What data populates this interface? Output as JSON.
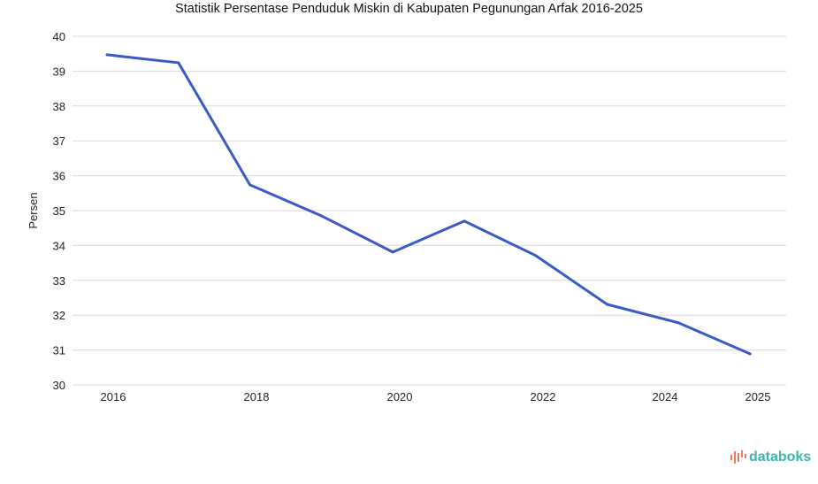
{
  "chart_data": {
    "type": "line",
    "title": "Statistik Persentase Penduduk Miskin di Kabupaten Pegunungan Arfak 2016-2025",
    "xlabel": "",
    "ylabel": "Persen",
    "ylim": [
      30,
      40
    ],
    "yticks": [
      "30",
      "31",
      "32",
      "33",
      "34",
      "35",
      "36",
      "37",
      "38",
      "39",
      "40"
    ],
    "xtick_labels": [
      "2016",
      "2018",
      "2020",
      "2022",
      "2024",
      "2025"
    ],
    "x": [
      2016,
      2017,
      2018,
      2019,
      2020,
      2021,
      2022,
      2023,
      2024,
      2025
    ],
    "series": [
      {
        "name": "Persentase Penduduk Miskin",
        "color": "#3a5bc7",
        "values": [
          39.47,
          39.24,
          35.74,
          34.85,
          33.81,
          34.7,
          33.71,
          32.31,
          31.78,
          30.89
        ]
      }
    ],
    "grid": true,
    "legend": "none"
  },
  "branding": {
    "logo_text": "databoks"
  }
}
